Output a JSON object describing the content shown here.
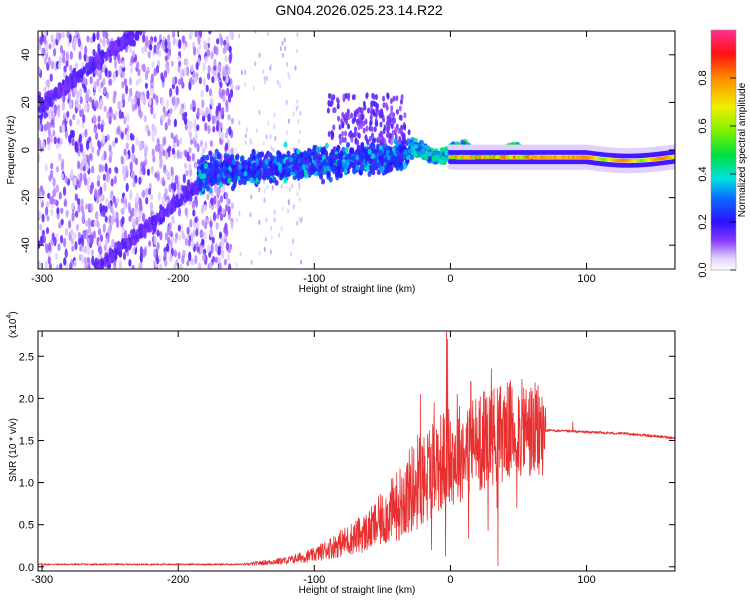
{
  "title": "GN04.2026.025.23.14.R22",
  "chart_data": [
    {
      "type": "heatmap",
      "name": "spectrogram",
      "xlabel": "Height of straight line (km)",
      "ylabel": "Frequency (Hz)",
      "xlim": [
        -303,
        165
      ],
      "ylim": [
        -50,
        50
      ],
      "xticks": [
        -300,
        -200,
        -100,
        0,
        100
      ],
      "yticks": [
        -40,
        -20,
        0,
        20,
        40
      ],
      "colorbar": {
        "label": "Normalized spectral amplitude",
        "range": [
          0,
          1
        ],
        "ticks": [
          "0.0",
          "0.2",
          "0.4",
          "0.6",
          "0.8"
        ],
        "tick_values": [
          0.0,
          0.2,
          0.4,
          0.6,
          0.8
        ]
      },
      "features": {
        "trail_end_km": -160,
        "main_echo_center_hz": -3,
        "diagonal_streak_upper": [
          [
            -303,
            18
          ],
          [
            -230,
            50
          ]
        ],
        "diagonal_streak_lower": [
          [
            -260,
            -50
          ],
          [
            -180,
            -12
          ]
        ]
      }
    },
    {
      "type": "line",
      "name": "snr",
      "xlabel": "Height of straight line (km)",
      "ylabel": "SNR (10 * v/v)",
      "yscale_label": "(x10",
      "yscale_exp": "4",
      "xlim": [
        -303,
        165
      ],
      "ylim": [
        -0.05,
        2.8
      ],
      "xticks": [
        -300,
        -200,
        -100,
        0,
        100
      ],
      "yticks": [
        "0.0",
        "0.5",
        "1.0",
        "1.5",
        "2.0",
        "2.5"
      ],
      "ytick_values": [
        0.0,
        0.5,
        1.0,
        1.5,
        2.0,
        2.5
      ],
      "color": "#e83030",
      "envelope": [
        [
          -303,
          0.03
        ],
        [
          -150,
          0.03
        ],
        [
          -120,
          0.08
        ],
        [
          -100,
          0.15
        ],
        [
          -80,
          0.3
        ],
        [
          -60,
          0.45
        ],
        [
          -40,
          0.75
        ],
        [
          -25,
          1.05
        ],
        [
          -10,
          1.3
        ],
        [
          0,
          1.35
        ],
        [
          10,
          1.45
        ],
        [
          30,
          1.62
        ],
        [
          50,
          1.7
        ],
        [
          70,
          1.62
        ],
        [
          100,
          1.6
        ],
        [
          130,
          1.58
        ],
        [
          165,
          1.53
        ]
      ],
      "spikes": [
        [
          -22,
          2.05
        ],
        [
          -12,
          1.95
        ],
        [
          -3,
          2.8
        ],
        [
          -2,
          2.7
        ],
        [
          5,
          2.05
        ],
        [
          15,
          2.2
        ],
        [
          22,
          2.02
        ],
        [
          30,
          2.35
        ],
        [
          40,
          1.95
        ],
        [
          55,
          1.88
        ],
        [
          90,
          1.72
        ]
      ]
    }
  ]
}
